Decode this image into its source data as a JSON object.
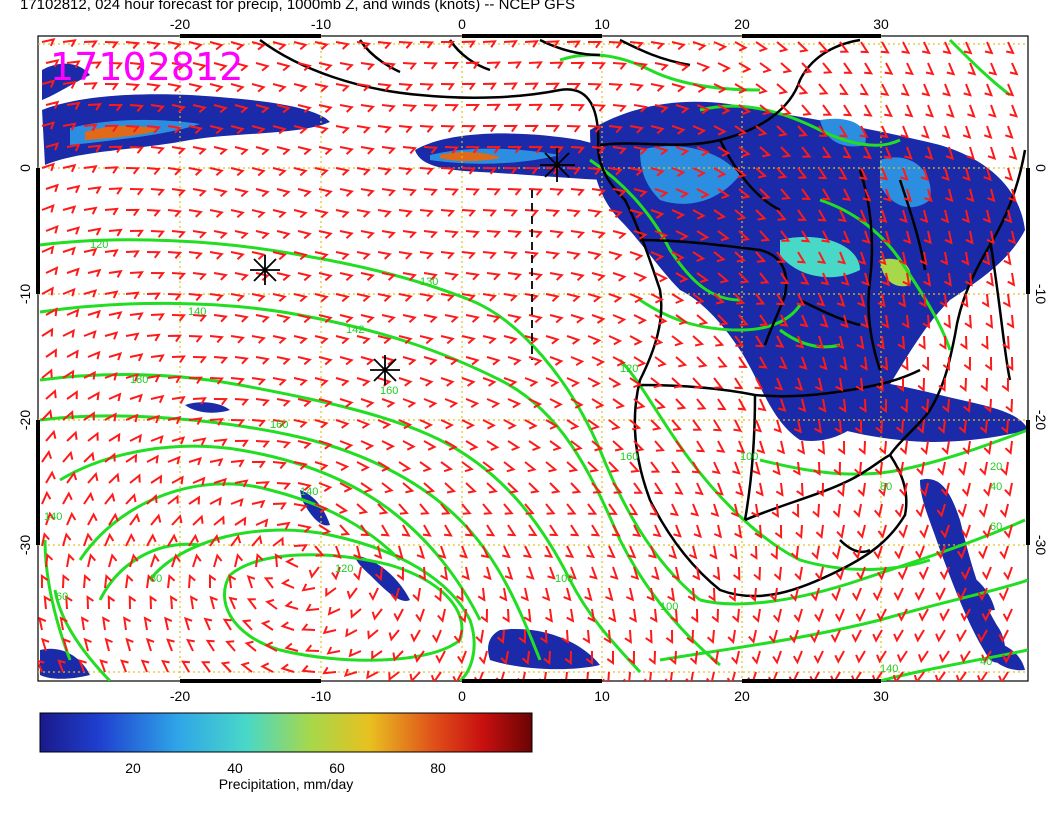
{
  "title": "17102812, 024 hour forecast for precip, 1000mb Z, and winds (knots) -- NCEP GFS",
  "stamp": "17102812",
  "axes": {
    "x_ticks_top": [
      "-20",
      "-10",
      "0",
      "10",
      "20",
      "30"
    ],
    "x_ticks_bottom": [
      "-20",
      "-10",
      "0",
      "10",
      "20",
      "30"
    ],
    "y_ticks_left": [
      "0",
      "-10",
      "-20",
      "-30"
    ],
    "y_ticks_right": [
      "0",
      "-10",
      "-20",
      "-30"
    ]
  },
  "colorbar": {
    "label": "Precipitation, mm/day",
    "ticks": [
      "20",
      "40",
      "60",
      "80"
    ]
  },
  "contour_labels": [
    "120",
    "130",
    "140",
    "142",
    "160",
    "180",
    "160",
    "140",
    "120",
    "100",
    "100",
    "80",
    "60",
    "140",
    "160",
    "120",
    "100",
    "80",
    "20",
    "40",
    "60",
    "140",
    "40",
    "100",
    "100",
    "80",
    "60"
  ],
  "colors": {
    "contour": "#22dd22",
    "barbs": "#ff1a1a",
    "coast": "#000000",
    "grid": "#e0c020",
    "stamp": "#ff00ff"
  }
}
